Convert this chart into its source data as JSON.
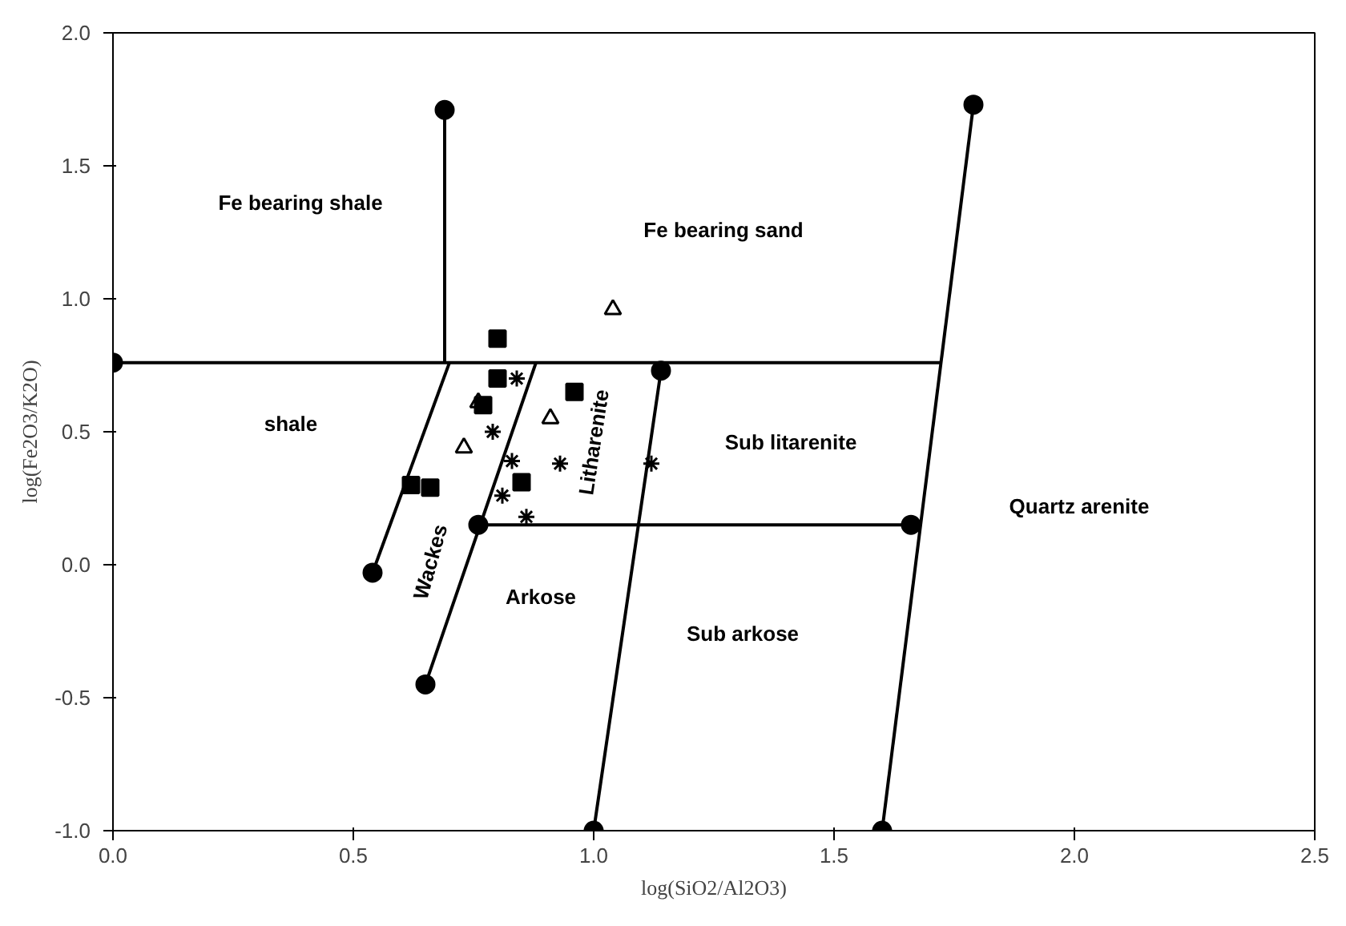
{
  "chart_data": {
    "type": "scatter",
    "xlabel": "log(SiO2/Al2O3)",
    "ylabel": "log(Fe2O3/K2O)",
    "xlim": [
      0,
      2.5
    ],
    "ylim": [
      -1,
      2
    ],
    "xticks": [
      {
        "value": 0,
        "label": "0.0"
      },
      {
        "value": 0.5,
        "label": "0.5"
      },
      {
        "value": 1,
        "label": "1.0"
      },
      {
        "value": 1.5,
        "label": "1.5"
      },
      {
        "value": 2,
        "label": "2.0"
      },
      {
        "value": 2.5,
        "label": "2.5"
      }
    ],
    "yticks": [
      {
        "value": -1,
        "label": "-1.0"
      },
      {
        "value": -0.5,
        "label": "-0.5"
      },
      {
        "value": 0,
        "label": "0.0"
      },
      {
        "value": 0.5,
        "label": "0.5"
      },
      {
        "value": 1,
        "label": "1.0"
      },
      {
        "value": 1.5,
        "label": "1.5"
      },
      {
        "value": 2,
        "label": "2.0"
      }
    ],
    "grid": false,
    "series": [
      {
        "type": "line",
        "marker": "none",
        "color": "#000000",
        "x": [
          0,
          1.72
        ],
        "values": [
          0.76,
          0.76
        ]
      },
      {
        "type": "line",
        "marker": "none",
        "color": "#000000",
        "x": [
          0.69,
          0.69
        ],
        "values": [
          0.76,
          1.71
        ]
      },
      {
        "type": "line",
        "marker": "none",
        "color": "#000000",
        "x": [
          0.54,
          0.7
        ],
        "values": [
          -0.03,
          0.76
        ]
      },
      {
        "type": "line",
        "marker": "none",
        "color": "#000000",
        "x": [
          0.65,
          0.88
        ],
        "values": [
          -0.45,
          0.76
        ]
      },
      {
        "type": "line",
        "marker": "none",
        "color": "#000000",
        "x": [
          1.0,
          1.14
        ],
        "values": [
          -1.0,
          0.73
        ]
      },
      {
        "type": "line",
        "marker": "none",
        "color": "#000000",
        "x": [
          1.6,
          1.79
        ],
        "values": [
          -1.0,
          1.73
        ]
      },
      {
        "type": "line",
        "marker": "none",
        "color": "#000000",
        "x": [
          0.76,
          1.66
        ],
        "values": [
          0.15,
          0.15
        ]
      },
      {
        "marker": "circle",
        "color": "#000000",
        "x": [
          0,
          0.69,
          0.54,
          0.65,
          1.0,
          1.14,
          1.6,
          1.79,
          0.76,
          1.66
        ],
        "values": [
          0.76,
          1.71,
          -0.03,
          -0.45,
          -1.0,
          0.73,
          -1.0,
          1.73,
          0.15,
          0.15
        ]
      },
      {
        "marker": "square",
        "color": "#000000",
        "x": [
          0.8,
          0.8,
          0.77,
          0.96,
          0.62,
          0.66,
          0.85
        ],
        "values": [
          0.85,
          0.7,
          0.6,
          0.65,
          0.3,
          0.29,
          0.31
        ]
      },
      {
        "marker": "triangle",
        "color": "#000000",
        "x": [
          1.04,
          0.91,
          0.73,
          0.76
        ],
        "values": [
          0.96,
          0.55,
          0.44,
          0.61
        ]
      },
      {
        "marker": "cross",
        "color": "#000000",
        "x": [
          0.84,
          0.79,
          0.83,
          0.81,
          0.86,
          0.93,
          1.12
        ],
        "values": [
          0.7,
          0.5,
          0.39,
          0.26,
          0.18,
          0.38,
          0.38
        ]
      }
    ],
    "annotations": [
      "Fe bearing shale",
      "Fe bearing sand",
      "shale",
      "Sub litarenite",
      "Quartz arenite",
      "Wackes",
      "Litharenite",
      "Arkose",
      "Sub arkose"
    ]
  }
}
